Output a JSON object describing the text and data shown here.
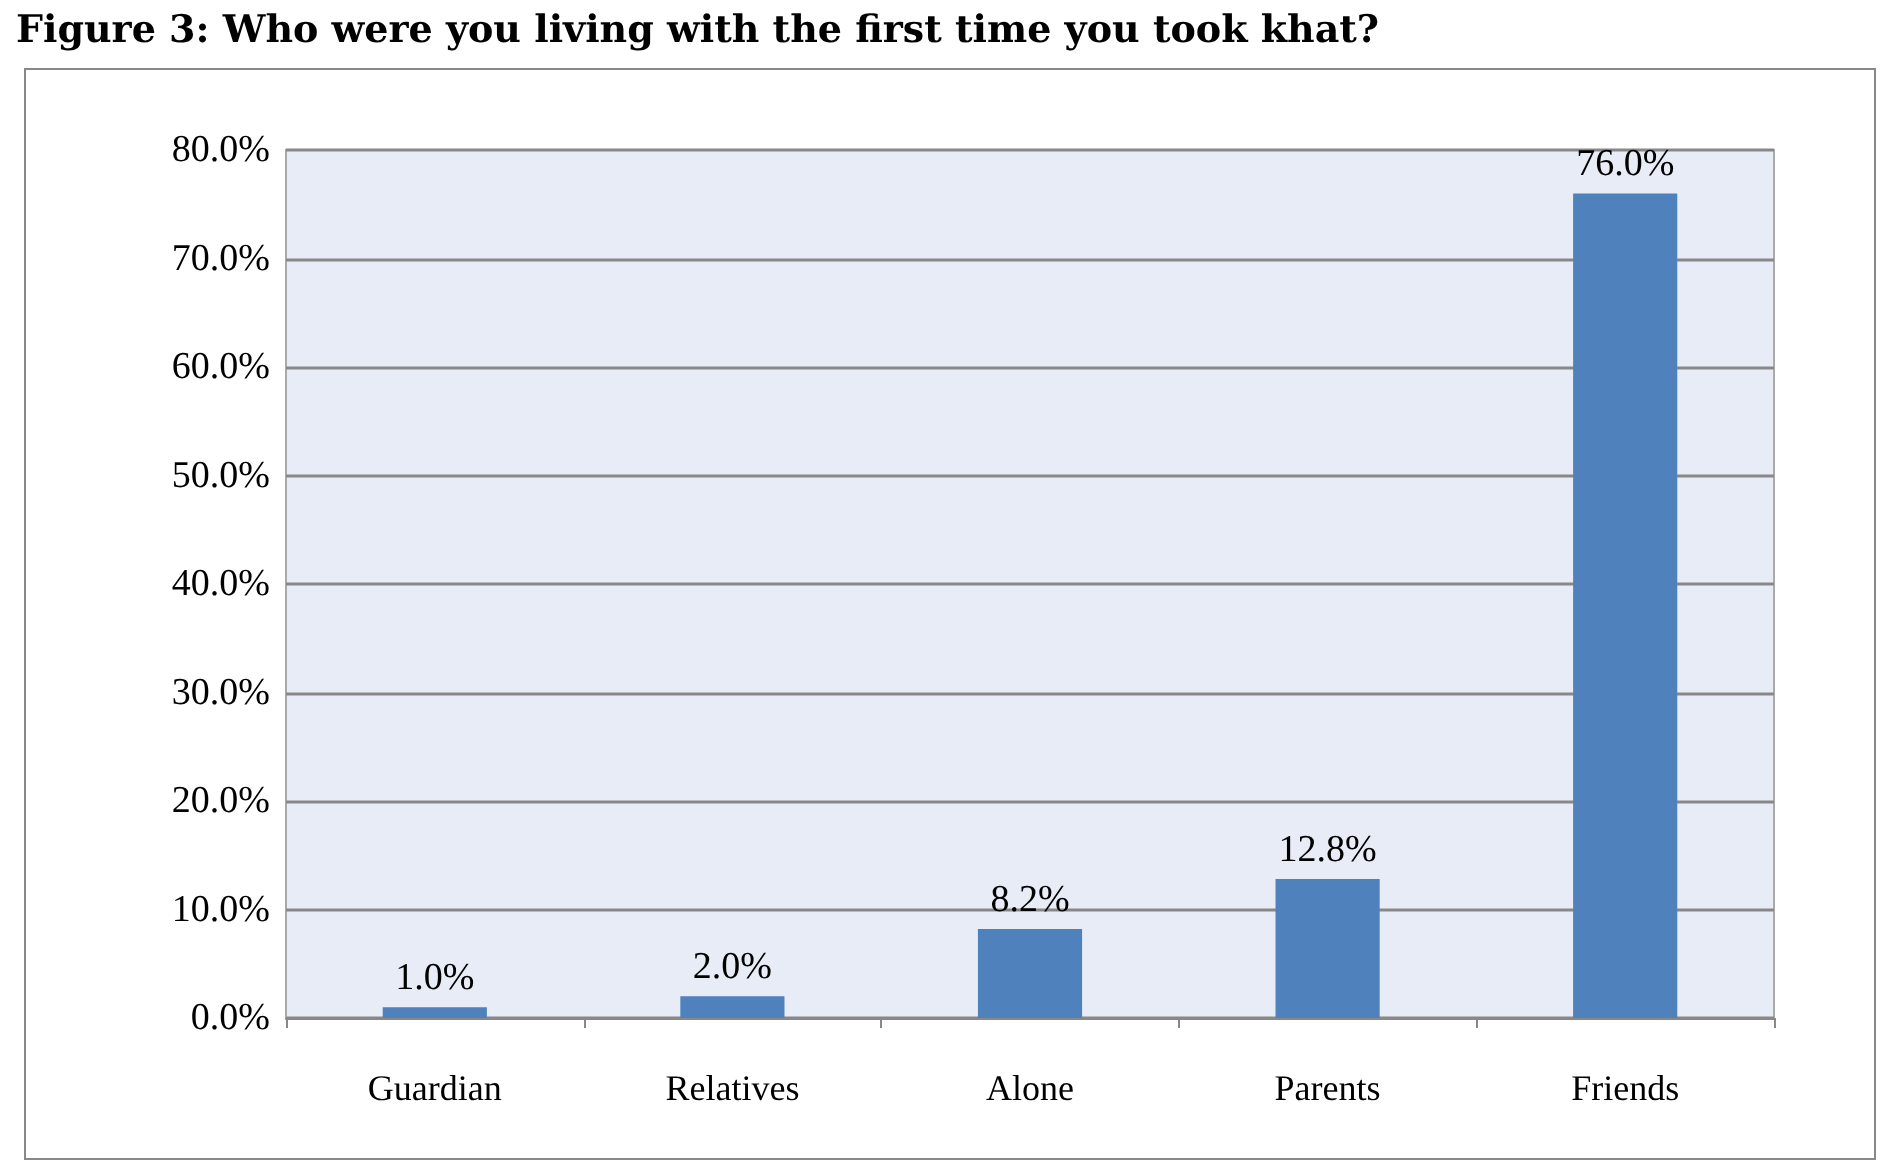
{
  "chart_data": {
    "type": "bar",
    "title": "Figure 3: Who were you living with the first time you took khat?",
    "categories": [
      "Guardian",
      "Relatives",
      "Alone",
      "Parents",
      "Friends"
    ],
    "values": [
      1.0,
      2.0,
      8.2,
      12.8,
      76.0
    ],
    "value_labels": [
      "1.0%",
      "2.0%",
      "8.2%",
      "12.8%",
      "76.0%"
    ],
    "color": "#4f81bd",
    "ylim": [
      0,
      80
    ],
    "yticks": [
      {
        "value": 0,
        "label": "0.0%"
      },
      {
        "value": 10,
        "label": "10.0%"
      },
      {
        "value": 20,
        "label": "20.0%"
      },
      {
        "value": 30,
        "label": "30.0%"
      },
      {
        "value": 40,
        "label": "40.0%"
      },
      {
        "value": 50,
        "label": "50.0%"
      },
      {
        "value": 60,
        "label": "60.0%"
      },
      {
        "value": 70,
        "label": "70.0%"
      },
      {
        "value": 80,
        "label": "80.0%"
      }
    ],
    "grid": "y"
  }
}
